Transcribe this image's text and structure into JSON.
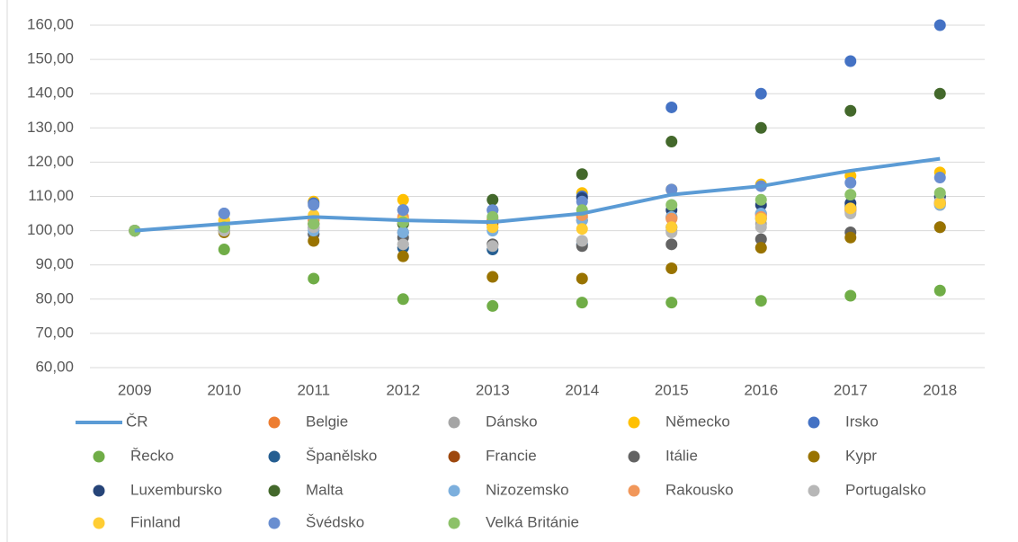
{
  "chart_data": {
    "type": "scatter",
    "categories": [
      "2009",
      "2010",
      "2011",
      "2012",
      "2013",
      "2014",
      "2015",
      "2016",
      "2017",
      "2018"
    ],
    "ylim": [
      60,
      160
    ],
    "yticks": [
      {
        "value": 60,
        "label": "60,00"
      },
      {
        "value": 70,
        "label": "70,00"
      },
      {
        "value": 80,
        "label": "80,00"
      },
      {
        "value": 90,
        "label": "90,00"
      },
      {
        "value": 100,
        "label": "100,00"
      },
      {
        "value": 110,
        "label": "110,00"
      },
      {
        "value": 120,
        "label": "120,00"
      },
      {
        "value": 130,
        "label": "130,00"
      },
      {
        "value": 140,
        "label": "140,00"
      },
      {
        "value": 150,
        "label": "150,00"
      },
      {
        "value": 160,
        "label": "160,00"
      }
    ],
    "grid": true,
    "legend": "bottom",
    "series": [
      {
        "name": "ČR",
        "type": "line",
        "color": "#5b9bd5",
        "values": [
          100,
          102,
          104,
          103,
          102.5,
          105,
          110.5,
          113,
          117.5,
          121
        ]
      },
      {
        "name": "Belgie",
        "color": "#ed7d31",
        "values": [
          100,
          102,
          103,
          103.5,
          103,
          104,
          103.5,
          104.5,
          106,
          107.5
        ]
      },
      {
        "name": "Dánsko",
        "color": "#a5a5a5",
        "values": [
          100,
          100.5,
          100.5,
          96,
          96,
          97,
          100,
          102,
          105.5,
          108
        ]
      },
      {
        "name": "Německo",
        "color": "#ffc000",
        "values": [
          100,
          103,
          108.5,
          109,
          101,
          111,
          112,
          113.5,
          116,
          117
        ]
      },
      {
        "name": "Irsko",
        "color": "#4472c4",
        "values": [
          100,
          105,
          108,
          106,
          106,
          110,
          136,
          140,
          149.5,
          160
        ]
      },
      {
        "name": "Řecko",
        "color": "#70ad47",
        "values": [
          100,
          94.5,
          86,
          80,
          78,
          79,
          79,
          79.5,
          81,
          82.5
        ]
      },
      {
        "name": "Španělsko",
        "color": "#255e91",
        "values": [
          100,
          100,
          99,
          95,
          94.5,
          96,
          101,
          103.5,
          107,
          110
        ]
      },
      {
        "name": "Francie",
        "color": "#9e480e",
        "values": [
          100,
          101,
          102,
          102,
          102,
          103,
          104,
          105,
          106.5,
          108
        ]
      },
      {
        "name": "Itálie",
        "color": "#636363",
        "values": [
          100,
          100,
          99,
          98,
          96,
          95.5,
          96,
          97.5,
          99.5,
          101
        ]
      },
      {
        "name": "Kypr",
        "color": "#997300",
        "values": [
          100,
          99.5,
          97,
          92.5,
          86.5,
          86,
          89,
          95,
          98,
          101
        ]
      },
      {
        "name": "Luxembursko",
        "color": "#264478",
        "values": [
          100,
          102,
          101,
          99.5,
          103,
          109.5,
          106,
          107.5,
          108,
          110
        ]
      },
      {
        "name": "Malta",
        "color": "#43682b",
        "values": [
          100,
          101,
          102,
          102,
          109,
          116.5,
          126,
          130,
          135,
          140
        ]
      },
      {
        "name": "Nizozemsko",
        "color": "#7cafdd",
        "values": [
          100,
          101,
          100,
          99.5,
          100,
          103,
          104,
          105,
          106,
          107.5
        ]
      },
      {
        "name": "Rakousko",
        "color": "#f1975a",
        "values": [
          100,
          102,
          103,
          104,
          103.5,
          104.5,
          103.5,
          104,
          106,
          108.5
        ]
      },
      {
        "name": "Portugalsko",
        "color": "#b7b7b7",
        "values": [
          100,
          100,
          101,
          96,
          95.5,
          97,
          99.5,
          101,
          105,
          108.5
        ]
      },
      {
        "name": "Finland",
        "color": "#ffcd33",
        "values": [
          100,
          103,
          104.5,
          103,
          101,
          100.5,
          101,
          103.5,
          106.5,
          108
        ]
      },
      {
        "name": "Švédsko",
        "color": "#698ed0",
        "values": [
          100,
          105,
          107.5,
          106,
          106,
          108.5,
          112,
          113,
          114,
          115.5
        ]
      },
      {
        "name": "Velká Británie",
        "color": "#8cc168",
        "values": [
          100,
          101,
          102,
          102.5,
          104,
          106,
          107.5,
          109,
          110.5,
          111
        ]
      }
    ]
  }
}
